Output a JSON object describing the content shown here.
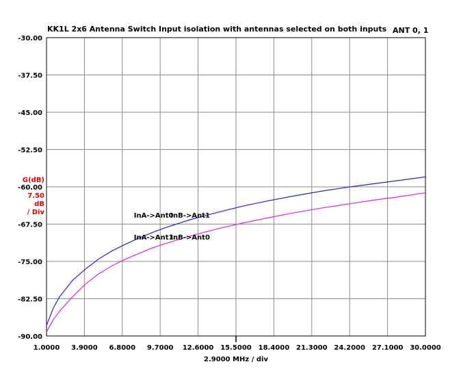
{
  "header": {
    "left": "KK1L 2x6 Antenna Switch",
    "center": "Input isolation with antennas selected on both inputs",
    "right": "ANT 0, 1"
  },
  "chart_data": {
    "type": "line",
    "title": "Input isolation with antennas selected on both inputs",
    "xlabel": "2.9000 MHz / div",
    "ylabel": "G(dB)",
    "yscale_label": [
      "7.50",
      "dB",
      "/ Div"
    ],
    "xlim": [
      1.0,
      30.0
    ],
    "ylim": [
      -90.0,
      -30.0
    ],
    "x_ticks": [
      "1.0000",
      "3.9000",
      "6.8000",
      "9.7000",
      "12.6000",
      "15.5000",
      "18.4000",
      "21.3000",
      "24.2000",
      "27.1000",
      "30.0000"
    ],
    "y_ticks": [
      "-30.00",
      "-37.50",
      "-45.00",
      "-52.50",
      "-60.00",
      "-67.50",
      "-75.00",
      "-82.50",
      "-90.00"
    ],
    "grid": true,
    "colors": {
      "series1": "#2020e0",
      "series2": "#e020e0",
      "axis_label": "#e00000"
    },
    "series": [
      {
        "name": "InA->Ant0   InB->Ant1",
        "x": [
          1.0,
          1.5,
          2.0,
          3.0,
          4.0,
          5.0,
          6.0,
          7.0,
          8.0,
          9.0,
          10.0,
          12.0,
          14.0,
          16.0,
          18.0,
          20.0,
          22.0,
          24.0,
          26.0,
          28.0,
          30.0
        ],
        "y": [
          -87.9,
          -84.5,
          -82.1,
          -78.8,
          -76.5,
          -74.5,
          -72.9,
          -71.6,
          -70.4,
          -69.3,
          -68.3,
          -66.6,
          -65.2,
          -63.9,
          -62.8,
          -61.8,
          -60.9,
          -60.1,
          -59.4,
          -58.7,
          -58.0
        ]
      },
      {
        "name": "InA->Ant1   InB->Ant0",
        "x": [
          1.0,
          1.5,
          2.0,
          3.0,
          4.0,
          5.0,
          6.0,
          7.0,
          8.0,
          9.0,
          10.0,
          12.0,
          14.0,
          16.0,
          18.0,
          20.0,
          22.0,
          24.0,
          26.0,
          28.0,
          30.0
        ],
        "y": [
          -89.2,
          -86.8,
          -85.0,
          -82.1,
          -79.5,
          -77.5,
          -75.9,
          -74.6,
          -73.5,
          -72.4,
          -71.5,
          -69.9,
          -68.5,
          -67.3,
          -66.2,
          -65.2,
          -64.3,
          -63.5,
          -62.7,
          -62.0,
          -61.2
        ]
      }
    ],
    "series_labels": [
      {
        "text": "InA->Ant0",
        "x": 9.2,
        "y": -66.2
      },
      {
        "text": "InB->Ant1",
        "x": 12.0,
        "y": -66.2
      },
      {
        "text": "InA->Ant1",
        "x": 9.2,
        "y": -70.6
      },
      {
        "text": "InB->Ant0",
        "x": 12.0,
        "y": -70.6
      }
    ]
  }
}
